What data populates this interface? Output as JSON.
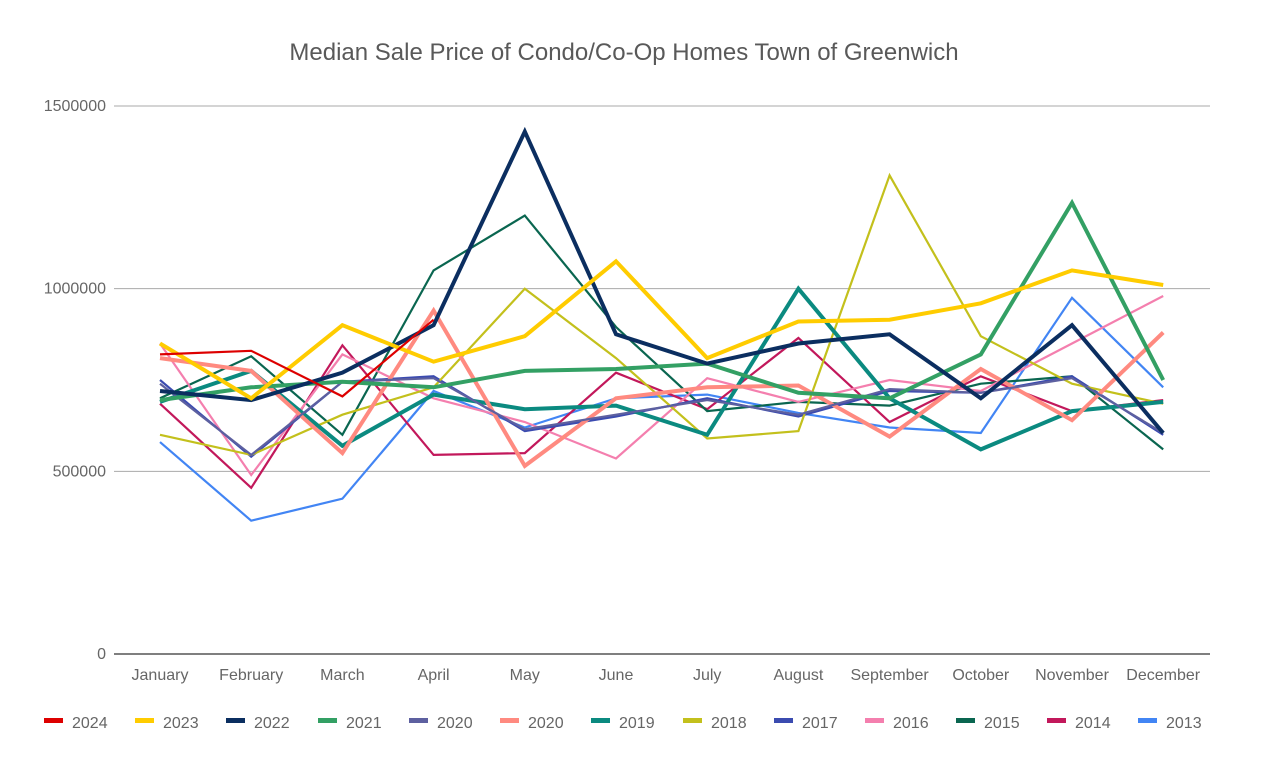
{
  "chart_data": {
    "type": "line",
    "title": "Median Sale Price of Condo/Co-Op Homes Town of Greenwich",
    "xlabel": "",
    "ylabel": "",
    "ylim": [
      0,
      1500000
    ],
    "yticks": [
      "0",
      "500000",
      "1000000",
      "1500000"
    ],
    "grid": true,
    "legend_position": "bottom",
    "categories": [
      "January",
      "February",
      "March",
      "April",
      "May",
      "June",
      "July",
      "August",
      "September",
      "October",
      "November",
      "December"
    ],
    "series": [
      {
        "name": "2024",
        "color": "#dd0000",
        "thick": false,
        "values": [
          820000,
          830000,
          705000,
          915000,
          null,
          null,
          null,
          null,
          null,
          null,
          null,
          null
        ]
      },
      {
        "name": "2023",
        "color": "#ffcc00",
        "thick": true,
        "values": [
          850000,
          700000,
          900000,
          800000,
          870000,
          1075000,
          810000,
          910000,
          915000,
          960000,
          1050000,
          1010000
        ]
      },
      {
        "name": "2022",
        "color": "#0b2e60",
        "thick": true,
        "values": [
          720000,
          695000,
          770000,
          900000,
          1430000,
          875000,
          795000,
          850000,
          875000,
          700000,
          900000,
          605000
        ]
      },
      {
        "name": "2021",
        "color": "#33a064",
        "thick": true,
        "values": [
          695000,
          730000,
          745000,
          730000,
          775000,
          780000,
          795000,
          715000,
          700000,
          820000,
          1235000,
          750000
        ]
      },
      {
        "name": "2020",
        "color": "#5d60a0",
        "thick": false,
        "values": [
          740000,
          545000,
          745000,
          755000,
          615000,
          655000,
          695000,
          655000,
          725000,
          715000,
          755000,
          605000
        ]
      },
      {
        "name": "2020",
        "color": "#ff8a80",
        "thick": true,
        "values": [
          810000,
          775000,
          550000,
          940000,
          515000,
          700000,
          730000,
          735000,
          595000,
          780000,
          640000,
          880000
        ]
      },
      {
        "name": "2019",
        "color": "#0b8a80",
        "thick": true,
        "values": [
          690000,
          775000,
          570000,
          710000,
          670000,
          680000,
          600000,
          1000000,
          700000,
          560000,
          665000,
          690000
        ]
      },
      {
        "name": "2018",
        "color": "#c3c01c",
        "thick": false,
        "values": [
          600000,
          545000,
          655000,
          730000,
          1000000,
          810000,
          590000,
          610000,
          1310000,
          870000,
          740000,
          685000
        ]
      },
      {
        "name": "2017",
        "color": "#3b4bb0",
        "thick": false,
        "values": [
          750000,
          540000,
          745000,
          760000,
          610000,
          650000,
          700000,
          650000,
          720000,
          715000,
          760000,
          600000
        ]
      },
      {
        "name": "2016",
        "color": "#f47fae",
        "thick": false,
        "values": [
          850000,
          490000,
          820000,
          700000,
          635000,
          535000,
          755000,
          690000,
          750000,
          720000,
          850000,
          980000
        ]
      },
      {
        "name": "2015",
        "color": "#0a6650",
        "thick": false,
        "values": [
          700000,
          815000,
          600000,
          1050000,
          1200000,
          895000,
          665000,
          690000,
          680000,
          740000,
          760000,
          560000
        ]
      },
      {
        "name": "2014",
        "color": "#c2185b",
        "thick": false,
        "values": [
          685000,
          455000,
          845000,
          545000,
          550000,
          770000,
          670000,
          865000,
          635000,
          760000,
          665000,
          695000
        ]
      },
      {
        "name": "2013",
        "color": "#4285f4",
        "thick": false,
        "values": [
          580000,
          365000,
          425000,
          720000,
          620000,
          700000,
          710000,
          660000,
          620000,
          605000,
          975000,
          730000
        ]
      }
    ]
  }
}
